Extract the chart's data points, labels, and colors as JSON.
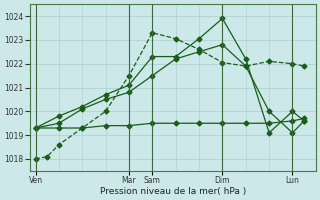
{
  "title": "",
  "xlabel": "Pression niveau de la mer( hPa )",
  "ylabel": "",
  "bg_color": "#cce8e8",
  "grid_color": "#aacece",
  "line_color": "#1a5c1a",
  "ylim": [
    1017.5,
    1024.5
  ],
  "day_labels": [
    "Ven",
    "Mar",
    "Sam",
    "Dim",
    "Lun"
  ],
  "day_positions": [
    0,
    8,
    10,
    16,
    22
  ],
  "xlim": [
    -0.5,
    24
  ],
  "xtick_minor_step": 2,
  "yticks": [
    1018,
    1019,
    1020,
    1021,
    1022,
    1023,
    1024
  ],
  "series": [
    {
      "x": [
        0,
        1,
        2,
        4,
        6,
        8,
        10,
        12,
        14,
        16,
        18,
        20,
        22,
        23
      ],
      "y": [
        1018.0,
        1018.1,
        1018.6,
        1019.3,
        1020.0,
        1021.5,
        1023.3,
        1023.05,
        1022.6,
        1022.05,
        1021.9,
        1022.1,
        1022.0,
        1021.9
      ],
      "style": "--",
      "marker": "D",
      "markersize": 2.5,
      "lw": 0.9
    },
    {
      "x": [
        0,
        2,
        4,
        6,
        8,
        10,
        12,
        14,
        16,
        18,
        20,
        22,
        23
      ],
      "y": [
        1019.3,
        1019.3,
        1019.3,
        1019.4,
        1019.4,
        1019.5,
        1019.5,
        1019.5,
        1019.5,
        1019.5,
        1019.5,
        1019.6,
        1019.7
      ],
      "style": "-",
      "marker": "D",
      "markersize": 2.5,
      "lw": 0.9
    },
    {
      "x": [
        0,
        2,
        4,
        6,
        8,
        10,
        12,
        14,
        16,
        18,
        20,
        22,
        23
      ],
      "y": [
        1019.3,
        1019.5,
        1020.1,
        1020.5,
        1020.8,
        1021.5,
        1022.2,
        1022.5,
        1022.8,
        1021.9,
        1020.0,
        1019.1,
        1019.6
      ],
      "style": "-",
      "marker": "D",
      "markersize": 2.5,
      "lw": 0.9
    },
    {
      "x": [
        0,
        2,
        4,
        6,
        8,
        10,
        12,
        14,
        16,
        18,
        20,
        22,
        23
      ],
      "y": [
        1019.3,
        1019.8,
        1020.2,
        1020.7,
        1021.1,
        1022.3,
        1022.3,
        1023.05,
        1023.9,
        1022.2,
        1019.1,
        1020.0,
        1019.6
      ],
      "style": "-",
      "marker": "D",
      "markersize": 2.5,
      "lw": 0.9
    }
  ]
}
